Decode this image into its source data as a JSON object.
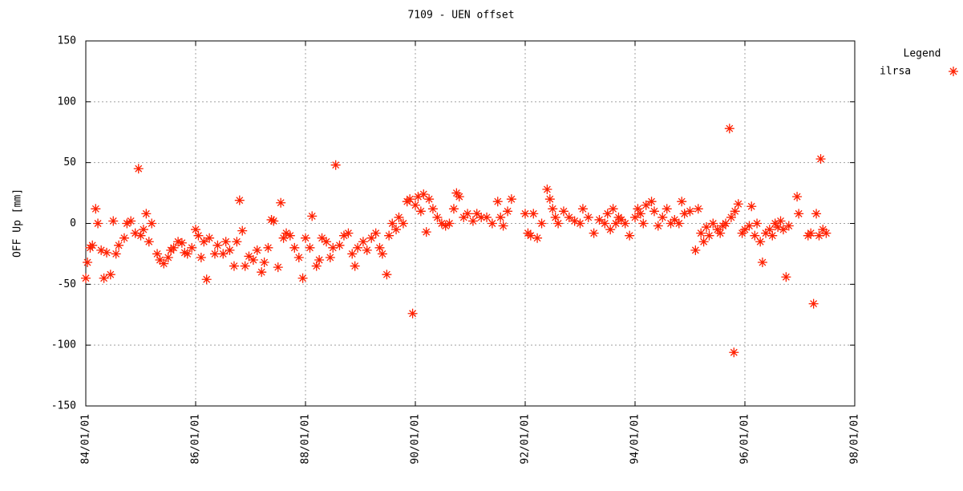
{
  "chart_data": {
    "type": "scatter",
    "title": "7109 - UEN offset",
    "ylabel": "OFF Up [mm]",
    "legend_title": "Legend",
    "legend": "outside-right",
    "grid": true,
    "xlim": [
      1984,
      1998
    ],
    "xticks": [
      {
        "value": 1984,
        "label": "84/01/01"
      },
      {
        "value": 1986,
        "label": "86/01/01"
      },
      {
        "value": 1988,
        "label": "88/01/01"
      },
      {
        "value": 1990,
        "label": "90/01/01"
      },
      {
        "value": 1992,
        "label": "92/01/01"
      },
      {
        "value": 1994,
        "label": "94/01/01"
      },
      {
        "value": 1996,
        "label": "96/01/01"
      },
      {
        "value": 1998,
        "label": "98/01/01"
      }
    ],
    "ylim": [
      -150,
      150
    ],
    "yticks": [
      -150,
      -100,
      -50,
      0,
      50,
      100,
      150
    ],
    "x": [
      1984.0,
      1984.03,
      1984.08,
      1984.12,
      1984.18,
      1984.22,
      1984.28,
      1984.33,
      1984.38,
      1984.45,
      1984.5,
      1984.55,
      1984.6,
      1984.7,
      1984.75,
      1984.82,
      1984.9,
      1984.96,
      1985.0,
      1985.05,
      1985.1,
      1985.15,
      1985.2,
      1985.3,
      1985.35,
      1985.42,
      1985.5,
      1985.55,
      1985.6,
      1985.68,
      1985.75,
      1985.8,
      1985.85,
      1985.93,
      1986.0,
      1986.05,
      1986.1,
      1986.15,
      1986.2,
      1986.25,
      1986.35,
      1986.4,
      1986.5,
      1986.55,
      1986.62,
      1986.7,
      1986.75,
      1986.8,
      1986.85,
      1986.9,
      1986.97,
      1987.05,
      1987.12,
      1987.2,
      1987.25,
      1987.32,
      1987.38,
      1987.42,
      1987.5,
      1987.55,
      1987.6,
      1987.65,
      1987.72,
      1987.8,
      1987.88,
      1987.95,
      1988.0,
      1988.08,
      1988.12,
      1988.2,
      1988.25,
      1988.3,
      1988.38,
      1988.45,
      1988.5,
      1988.55,
      1988.62,
      1988.7,
      1988.78,
      1988.85,
      1988.9,
      1988.95,
      1989.05,
      1989.12,
      1989.2,
      1989.28,
      1989.35,
      1989.4,
      1989.48,
      1989.52,
      1989.58,
      1989.65,
      1989.7,
      1989.78,
      1989.85,
      1989.9,
      1989.95,
      1990.0,
      1990.05,
      1990.1,
      1990.15,
      1990.2,
      1990.25,
      1990.32,
      1990.4,
      1990.48,
      1990.55,
      1990.62,
      1990.7,
      1990.75,
      1990.8,
      1990.88,
      1990.95,
      1991.05,
      1991.12,
      1991.2,
      1991.3,
      1991.4,
      1991.5,
      1991.55,
      1991.6,
      1991.68,
      1991.75,
      1992.0,
      1992.05,
      1992.1,
      1992.15,
      1992.22,
      1992.3,
      1992.4,
      1992.45,
      1992.5,
      1992.55,
      1992.6,
      1992.7,
      1992.8,
      1992.9,
      1993.0,
      1993.05,
      1993.15,
      1993.25,
      1993.35,
      1993.45,
      1993.5,
      1993.55,
      1993.6,
      1993.65,
      1993.7,
      1993.75,
      1993.82,
      1993.9,
      1994.0,
      1994.05,
      1994.1,
      1994.15,
      1994.2,
      1994.3,
      1994.35,
      1994.42,
      1994.5,
      1994.58,
      1994.65,
      1994.72,
      1994.8,
      1994.85,
      1994.9,
      1995.0,
      1995.1,
      1995.15,
      1995.2,
      1995.25,
      1995.3,
      1995.35,
      1995.42,
      1995.5,
      1995.55,
      1995.6,
      1995.65,
      1995.72,
      1995.75,
      1995.8,
      1995.82,
      1995.88,
      1995.95,
      1996.0,
      1996.08,
      1996.12,
      1996.18,
      1996.22,
      1996.28,
      1996.32,
      1996.38,
      1996.45,
      1996.5,
      1996.55,
      1996.6,
      1996.65,
      1996.7,
      1996.75,
      1996.8,
      1996.95,
      1996.98,
      1997.15,
      1997.2,
      1997.25,
      1997.3,
      1997.35,
      1997.38,
      1997.42,
      1997.48
    ],
    "series": [
      {
        "name": "ilrsa",
        "color": "#ff2000",
        "values": [
          -45,
          -32,
          -20,
          -18,
          12,
          0,
          -22,
          -45,
          -24,
          -42,
          2,
          -25,
          -18,
          -12,
          0,
          2,
          -8,
          45,
          -10,
          -5,
          8,
          -15,
          0,
          -25,
          -30,
          -33,
          -28,
          -22,
          -20,
          -15,
          -16,
          -24,
          -25,
          -20,
          -5,
          -10,
          -28,
          -15,
          -46,
          -12,
          -25,
          -18,
          -25,
          -15,
          -22,
          -35,
          -15,
          19,
          -6,
          -35,
          -27,
          -30,
          -22,
          -40,
          -32,
          -20,
          3,
          2,
          -36,
          17,
          -12,
          -8,
          -10,
          -20,
          -28,
          -45,
          -12,
          -20,
          6,
          -35,
          -30,
          -12,
          -15,
          -28,
          -20,
          48,
          -18,
          -10,
          -8,
          -25,
          -35,
          -20,
          -15,
          -22,
          -12,
          -8,
          -20,
          -25,
          -42,
          -10,
          0,
          -5,
          5,
          0,
          18,
          20,
          -74,
          15,
          22,
          10,
          24,
          -7,
          20,
          12,
          5,
          0,
          -2,
          0,
          12,
          25,
          22,
          5,
          8,
          2,
          8,
          5,
          5,
          0,
          18,
          5,
          -2,
          10,
          20,
          8,
          -8,
          -10,
          8,
          -12,
          0,
          28,
          20,
          12,
          5,
          0,
          10,
          5,
          2,
          0,
          12,
          5,
          -8,
          3,
          0,
          8,
          -5,
          12,
          0,
          5,
          3,
          0,
          -10,
          5,
          12,
          8,
          0,
          15,
          18,
          10,
          -2,
          5,
          12,
          0,
          3,
          0,
          18,
          8,
          10,
          -22,
          12,
          -8,
          -15,
          -3,
          -10,
          0,
          -5,
          -8,
          -2,
          0,
          78,
          5,
          -106,
          10,
          16,
          -8,
          -5,
          -2,
          14,
          -10,
          0,
          -15,
          -32,
          -8,
          -5,
          -10,
          0,
          -3,
          2,
          -5,
          -44,
          -2,
          22,
          8,
          -10,
          -8,
          -66,
          8,
          -10,
          53,
          -5,
          -8
        ]
      }
    ]
  }
}
